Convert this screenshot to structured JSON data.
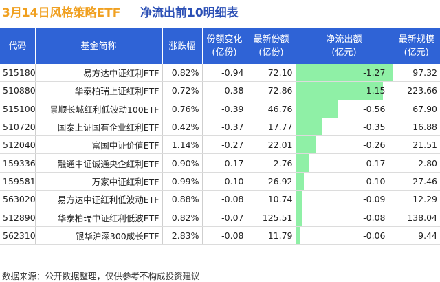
{
  "title": {
    "left": "3月14日风格策略ETF",
    "right": "净流出前10明细表"
  },
  "columns": {
    "code": "代码",
    "name": "基金简称",
    "change": "涨跌幅",
    "share_change_l1": "份额变化",
    "share_change_l2": "(亿份)",
    "latest_share_l1": "最新份额",
    "latest_share_l2": "(亿份)",
    "net_outflow_l1": "净流出额",
    "net_outflow_l2": "(亿元)",
    "latest_size_l1": "最新规模",
    "latest_size_l2": "(亿元)"
  },
  "rows": [
    {
      "code": "515180",
      "name": "易方达中证红利ETF",
      "change": "0.82%",
      "share_change": "-0.94",
      "latest_share": "72.10",
      "net_outflow": "-1.27",
      "outflow_value": -1.27,
      "latest_size": "97.32"
    },
    {
      "code": "510880",
      "name": "华泰柏瑞上证红利ETF",
      "change": "0.72%",
      "share_change": "-0.38",
      "latest_share": "72.86",
      "net_outflow": "-1.15",
      "outflow_value": -1.15,
      "latest_size": "223.66"
    },
    {
      "code": "515100",
      "name": "景顺长城红利低波动100ETF",
      "change": "0.76%",
      "share_change": "-0.39",
      "latest_share": "46.76",
      "net_outflow": "-0.56",
      "outflow_value": -0.56,
      "latest_size": "67.90"
    },
    {
      "code": "510720",
      "name": "国泰上证国有企业红利ETF",
      "change": "0.42%",
      "share_change": "-0.37",
      "latest_share": "17.77",
      "net_outflow": "-0.35",
      "outflow_value": -0.35,
      "latest_size": "16.88"
    },
    {
      "code": "512040",
      "name": "富国中证价值ETF",
      "change": "1.14%",
      "share_change": "-0.27",
      "latest_share": "22.01",
      "net_outflow": "-0.26",
      "outflow_value": -0.26,
      "latest_size": "21.51"
    },
    {
      "code": "159336",
      "name": "融通中证诚通央企红利ETF",
      "change": "0.90%",
      "share_change": "-0.17",
      "latest_share": "2.76",
      "net_outflow": "-0.17",
      "outflow_value": -0.17,
      "latest_size": "2.80"
    },
    {
      "code": "159581",
      "name": "万家中证红利ETF",
      "change": "0.99%",
      "share_change": "-0.10",
      "latest_share": "26.92",
      "net_outflow": "-0.10",
      "outflow_value": -0.1,
      "latest_size": "27.46"
    },
    {
      "code": "563020",
      "name": "易方达中证红利低波动ETF",
      "change": "0.88%",
      "share_change": "-0.08",
      "latest_share": "10.74",
      "net_outflow": "-0.09",
      "outflow_value": -0.09,
      "latest_size": "12.29"
    },
    {
      "code": "512890",
      "name": "华泰柏瑞中证红利低波ETF",
      "change": "0.82%",
      "share_change": "-0.07",
      "latest_share": "125.51",
      "net_outflow": "-0.08",
      "outflow_value": -0.08,
      "latest_size": "138.04"
    },
    {
      "code": "562310",
      "name": "银华沪深300成长ETF",
      "change": "2.83%",
      "share_change": "-0.08",
      "latest_share": "11.79",
      "net_outflow": "-0.06",
      "outflow_value": -0.06,
      "latest_size": "9.44"
    }
  ],
  "bar_color": "#8ff0a6",
  "source": "数据来源：公开数据整理，仅供参考不构成投资建议"
}
